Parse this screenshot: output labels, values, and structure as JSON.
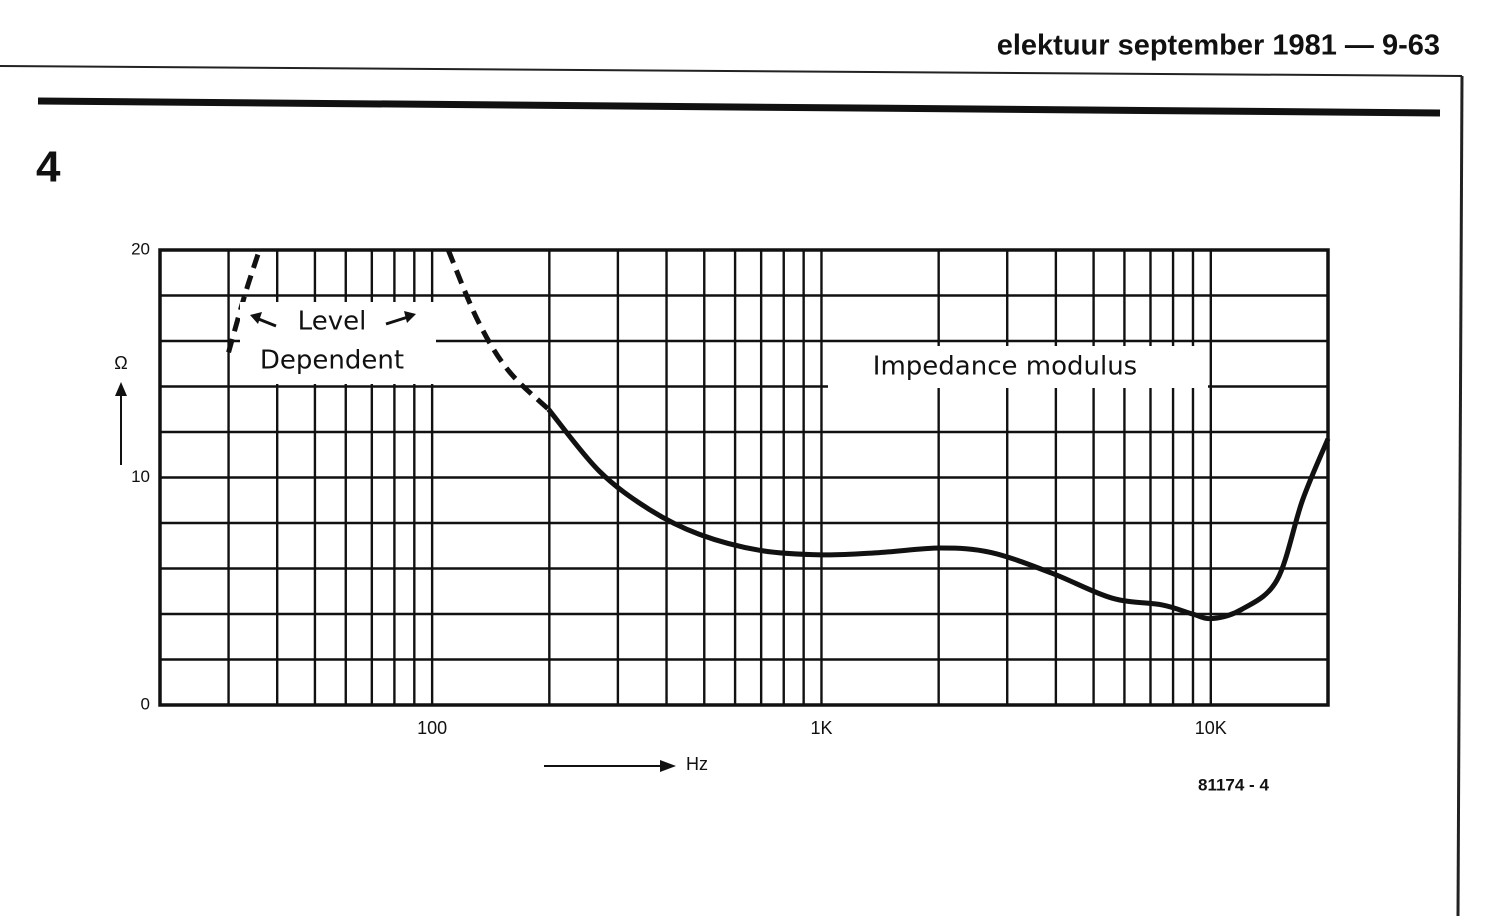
{
  "header": "elektuur september 1981 — 9-63",
  "figure_number": "4",
  "chart_data": {
    "type": "line",
    "y_label": "Ω",
    "x_label": "Hz",
    "code": "81174 - 4",
    "annotations": [
      "Level",
      "Dependent",
      "Impedance modulus"
    ],
    "xlim": [
      20,
      20000
    ],
    "ylim": [
      0,
      20
    ],
    "log_x": true,
    "xticks": [
      100,
      {
        "value": 1000,
        "label": "1K"
      },
      {
        "value": 10000,
        "label": "10K"
      }
    ],
    "minor_xticks": [
      30,
      40,
      50,
      60,
      70,
      80,
      90,
      200,
      300,
      400,
      500,
      600,
      700,
      800,
      900,
      2000,
      3000,
      4000,
      5000,
      6000,
      7000,
      8000,
      9000
    ],
    "yticks": [
      0,
      10,
      20
    ],
    "minor_yticks": [
      2,
      4,
      6,
      8,
      12,
      14,
      16,
      18
    ],
    "grid": true,
    "color": "#111111",
    "series": [
      {
        "dashed": true,
        "x": [
          30,
          33,
          36
        ],
        "values": [
          15.5,
          18,
          20
        ]
      },
      {
        "dashed": true,
        "x": [
          110,
          131,
          157,
          199
        ],
        "values": [
          20,
          16.9,
          14.7,
          13
        ]
      },
      {
        "dashed": false,
        "x": [
          199,
          268,
          361,
          486,
          694,
          1000,
          1410,
          2020,
          2730,
          3900,
          5570,
          7500,
          8970,
          10100,
          12000,
          14800,
          17200,
          20000
        ],
        "values": [
          13,
          10.3,
          8.6,
          7.5,
          6.8,
          6.6,
          6.7,
          6.9,
          6.7,
          5.8,
          4.7,
          4.4,
          4,
          3.8,
          4.2,
          5.5,
          9,
          11.7
        ]
      }
    ]
  }
}
